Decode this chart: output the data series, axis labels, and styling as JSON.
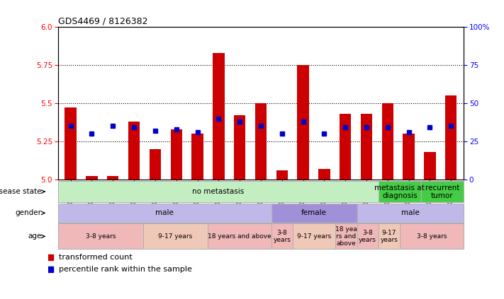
{
  "title": "GDS4469 / 8126382",
  "samples": [
    "GSM1025530",
    "GSM1025531",
    "GSM1025532",
    "GSM1025546",
    "GSM1025535",
    "GSM1025544",
    "GSM1025545",
    "GSM1025537",
    "GSM1025542",
    "GSM1025543",
    "GSM1025540",
    "GSM1025528",
    "GSM1025534",
    "GSM1025541",
    "GSM1025536",
    "GSM1025538",
    "GSM1025533",
    "GSM1025529",
    "GSM1025539"
  ],
  "red_values": [
    5.47,
    5.02,
    5.02,
    5.38,
    5.2,
    5.33,
    5.3,
    5.83,
    5.42,
    5.5,
    5.06,
    5.75,
    5.07,
    5.43,
    5.43,
    5.5,
    5.3,
    5.18,
    5.55
  ],
  "blue_percent": [
    35,
    30,
    35,
    34,
    32,
    33,
    31,
    40,
    38,
    35,
    30,
    38,
    30,
    34,
    34,
    34,
    31,
    34,
    35
  ],
  "ylim_left": [
    5.0,
    6.0
  ],
  "ylim_right": [
    0,
    100
  ],
  "yticks_left": [
    5.0,
    5.25,
    5.5,
    5.75,
    6.0
  ],
  "yticks_right": [
    0,
    25,
    50,
    75,
    100
  ],
  "bar_color": "#CC0000",
  "dot_color": "#0000CC",
  "disease_state_rows": [
    {
      "label": "no metastasis",
      "start": 0,
      "end": 15,
      "color": "#c2eec2"
    },
    {
      "label": "metastasis at\ndiagnosis",
      "start": 15,
      "end": 17,
      "color": "#44cc44"
    },
    {
      "label": "recurrent\ntumor",
      "start": 17,
      "end": 19,
      "color": "#44cc44"
    }
  ],
  "gender_rows": [
    {
      "label": "male",
      "start": 0,
      "end": 10,
      "color": "#c0b8e8"
    },
    {
      "label": "female",
      "start": 10,
      "end": 14,
      "color": "#a090d8"
    },
    {
      "label": "male",
      "start": 14,
      "end": 19,
      "color": "#c0b8e8"
    }
  ],
  "age_rows": [
    {
      "label": "3-8 years",
      "start": 0,
      "end": 4,
      "color": "#f0b8b8"
    },
    {
      "label": "9-17 years",
      "start": 4,
      "end": 7,
      "color": "#f0c8b8"
    },
    {
      "label": "18 years and above",
      "start": 7,
      "end": 10,
      "color": "#f0b8b8"
    },
    {
      "label": "3-8\nyears",
      "start": 10,
      "end": 11,
      "color": "#f0b8b8"
    },
    {
      "label": "9-17 years",
      "start": 11,
      "end": 13,
      "color": "#f0c8b8"
    },
    {
      "label": "18 yea\nrs and\nabove",
      "start": 13,
      "end": 14,
      "color": "#f0b8b8"
    },
    {
      "label": "3-8\nyears",
      "start": 14,
      "end": 15,
      "color": "#f0b8b8"
    },
    {
      "label": "9-17\nyears",
      "start": 15,
      "end": 16,
      "color": "#f0c8b8"
    },
    {
      "label": "3-8 years",
      "start": 16,
      "end": 19,
      "color": "#f0b8b8"
    }
  ],
  "legend_items": [
    {
      "label": "transformed count",
      "color": "#CC0000"
    },
    {
      "label": "percentile rank within the sample",
      "color": "#0000CC"
    }
  ]
}
